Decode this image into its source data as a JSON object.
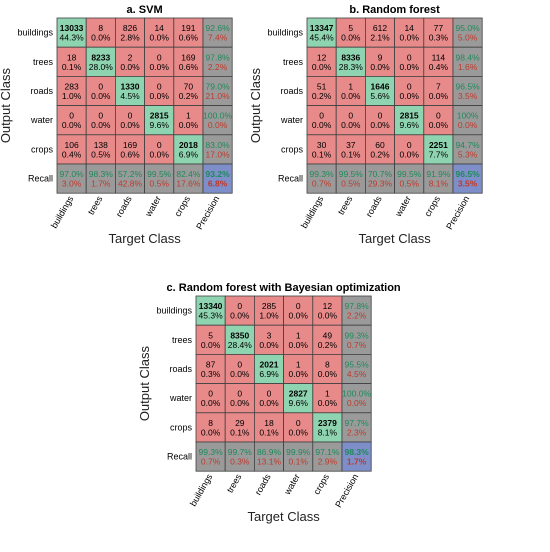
{
  "colors": {
    "correct": "#8fd4b0",
    "incorrect": "#e88a8a",
    "summary": "#9a9a9a",
    "overall": "#7d8ec8",
    "grid": "#404040",
    "accuracy_text": "#1e8a5a",
    "error_text": "#c0392b"
  },
  "chart_data": [
    {
      "type": "heatmap",
      "title": "a.  SVM",
      "xlabel": "Target Class",
      "ylabel": "Output Class",
      "row_labels": [
        "buildings",
        "trees",
        "roads",
        "water",
        "crops",
        "Recall"
      ],
      "col_labels": [
        "buildings",
        "trees",
        "roads",
        "water",
        "crops",
        "Precision"
      ],
      "counts": [
        [
          13033,
          8,
          826,
          14,
          191
        ],
        [
          18,
          8233,
          2,
          0,
          169
        ],
        [
          283,
          0,
          1330,
          0,
          70
        ],
        [
          0,
          0,
          0,
          2815,
          1
        ],
        [
          106,
          138,
          169,
          0,
          2018
        ]
      ],
      "percents": [
        [
          "44.3%",
          "0.0%",
          "2.8%",
          "0.0%",
          "0.6%"
        ],
        [
          "0.1%",
          "28.0%",
          "0.0%",
          "0.0%",
          "0.6%"
        ],
        [
          "1.0%",
          "0.0%",
          "4.5%",
          "0.0%",
          "0.2%"
        ],
        [
          "0.0%",
          "0.0%",
          "0.0%",
          "9.6%",
          "0.0%"
        ],
        [
          "0.4%",
          "0.5%",
          "0.6%",
          "0.0%",
          "6.9%"
        ]
      ],
      "precision": [
        [
          "92.6%",
          "7.4%"
        ],
        [
          "97.8%",
          "2.2%"
        ],
        [
          "79.0%",
          "21.0%"
        ],
        [
          "100.0%",
          "0.0%"
        ],
        [
          "83.0%",
          "17.0%"
        ]
      ],
      "recall": [
        [
          "97.0%",
          "3.0%"
        ],
        [
          "98.3%",
          "1.7%"
        ],
        [
          "57.2%",
          "42.8%"
        ],
        [
          "99.5%",
          "0.5%"
        ],
        [
          "82.4%",
          "17.6%"
        ]
      ],
      "overall": [
        "93.2%",
        "6.8%"
      ]
    },
    {
      "type": "heatmap",
      "title": "b. Random forest",
      "xlabel": "Target Class",
      "ylabel": "Output Class",
      "row_labels": [
        "buildings",
        "trees",
        "roads",
        "water",
        "crops",
        "Recall"
      ],
      "col_labels": [
        "buildings",
        "trees",
        "roads",
        "water",
        "crops",
        "Precision"
      ],
      "counts": [
        [
          13347,
          5,
          612,
          14,
          77
        ],
        [
          12,
          8336,
          9,
          0,
          114
        ],
        [
          51,
          1,
          1646,
          0,
          7
        ],
        [
          0,
          0,
          0,
          2815,
          0
        ],
        [
          30,
          37,
          60,
          0,
          2251
        ]
      ],
      "percents": [
        [
          "45.4%",
          "0.0%",
          "2.1%",
          "0.0%",
          "0.3%"
        ],
        [
          "0.0%",
          "28.3%",
          "0.0%",
          "0.0%",
          "0.4%"
        ],
        [
          "0.2%",
          "0.0%",
          "5.6%",
          "0.0%",
          "0.0%"
        ],
        [
          "0.0%",
          "0.0%",
          "0.0%",
          "9.6%",
          "0.0%"
        ],
        [
          "0.1%",
          "0.1%",
          "0.2%",
          "0.0%",
          "7.7%"
        ]
      ],
      "precision": [
        [
          "95.0%",
          "5.0%"
        ],
        [
          "98.4%",
          "1.6%"
        ],
        [
          "96.5%",
          "3.5%"
        ],
        [
          "100%",
          "0.0%"
        ],
        [
          "94.7%",
          "5.3%"
        ]
      ],
      "recall": [
        [
          "99.3%",
          "0.7%"
        ],
        [
          "99.5%",
          "0.5%"
        ],
        [
          "70.7%",
          "29.3%"
        ],
        [
          "99.5%",
          "0.5%"
        ],
        [
          "91.9%",
          "8.1%"
        ]
      ],
      "overall": [
        "96.5%",
        "3.5%"
      ]
    },
    {
      "type": "heatmap",
      "title": "c. Random forest with Bayesian optimization",
      "xlabel": "Target Class",
      "ylabel": "Output Class",
      "row_labels": [
        "buildings",
        "trees",
        "roads",
        "water",
        "crops",
        "Recall"
      ],
      "col_labels": [
        "buildings",
        "trees",
        "roads",
        "water",
        "crops",
        "Precision"
      ],
      "counts": [
        [
          13340,
          0,
          285,
          0,
          12
        ],
        [
          5,
          8350,
          3,
          1,
          49
        ],
        [
          87,
          0,
          2021,
          1,
          8
        ],
        [
          0,
          0,
          0,
          2827,
          1
        ],
        [
          8,
          29,
          18,
          0,
          2379
        ]
      ],
      "percents": [
        [
          "45.3%",
          "0.0%",
          "1.0%",
          "0.0%",
          "0.0%"
        ],
        [
          "0.0%",
          "28.4%",
          "0.0%",
          "0.0%",
          "0.2%"
        ],
        [
          "0.3%",
          "0.0%",
          "6.9%",
          "0.0%",
          "0.0%"
        ],
        [
          "0.0%",
          "0.0%",
          "0.0%",
          "9.6%",
          "0.0%"
        ],
        [
          "0.0%",
          "0.1%",
          "0.1%",
          "0.0%",
          "8.1%"
        ]
      ],
      "precision": [
        [
          "97.8%",
          "2.2%"
        ],
        [
          "99.3%",
          "0.7%"
        ],
        [
          "95.5%",
          "4.5%"
        ],
        [
          "100.0%",
          "0.0%"
        ],
        [
          "97.7%",
          "2.3%"
        ]
      ],
      "recall": [
        [
          "99.3%",
          "0.7%"
        ],
        [
          "99.7%",
          "0.3%"
        ],
        [
          "86.9%",
          "13.1%"
        ],
        [
          "99.9%",
          "0.1%"
        ],
        [
          "97.1%",
          "2.9%"
        ]
      ],
      "overall": [
        "98.3%",
        "1.7%"
      ]
    }
  ]
}
